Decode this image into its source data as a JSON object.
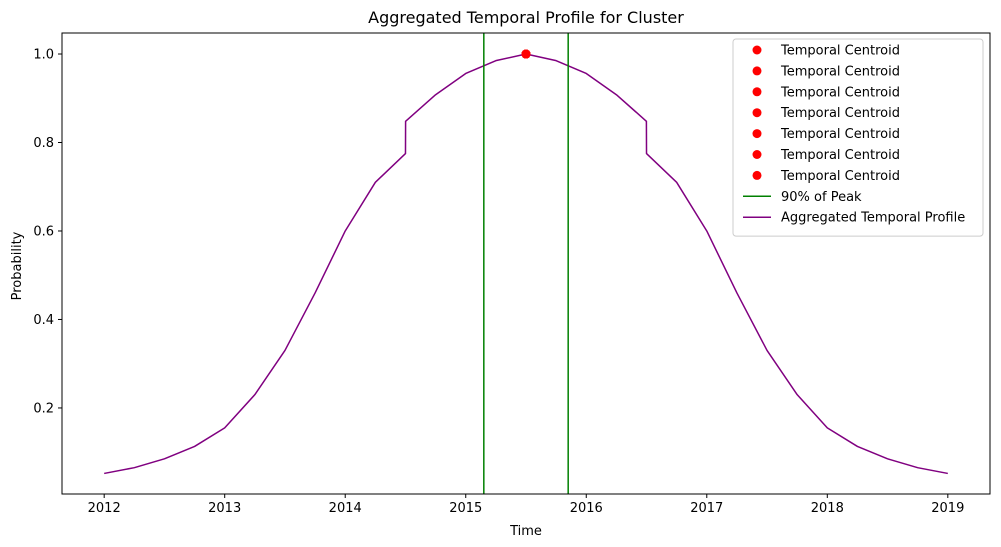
{
  "chart_data": {
    "type": "line",
    "title": "Aggregated Temporal Profile for Cluster",
    "xlabel": "Time",
    "ylabel": "Probability",
    "xlim": [
      2011.65,
      2019.35
    ],
    "ylim": [
      0.0055,
      1.0475
    ],
    "xticks": [
      2012,
      2013,
      2014,
      2015,
      2016,
      2017,
      2018,
      2019
    ],
    "xtick_labels": [
      "2012",
      "2013",
      "2014",
      "2015",
      "2016",
      "2017",
      "2018",
      "2019"
    ],
    "yticks": [
      0.2,
      0.4,
      0.6,
      0.8,
      1.0
    ],
    "ytick_labels": [
      "0.2",
      "0.4",
      "0.6",
      "0.8",
      "1.0"
    ],
    "grid": false,
    "legend_position": "top-right",
    "series": [
      {
        "name": "Aggregated Temporal Profile",
        "kind": "line",
        "color": "#800080",
        "x": [
          2012.0,
          2012.25,
          2012.5,
          2012.75,
          2013.0,
          2013.25,
          2013.5,
          2013.75,
          2014.0,
          2014.25,
          2014.5,
          2014.501,
          2014.75,
          2015.0,
          2015.25,
          2015.5,
          2015.75,
          2016.0,
          2016.25,
          2016.499,
          2016.5,
          2016.75,
          2017.0,
          2017.25,
          2017.5,
          2017.75,
          2018.0,
          2018.25,
          2018.5,
          2018.75,
          2019.0
        ],
        "y": [
          0.052,
          0.065,
          0.085,
          0.113,
          0.155,
          0.23,
          0.33,
          0.46,
          0.6,
          0.71,
          0.775,
          0.848,
          0.908,
          0.956,
          0.985,
          1.0,
          0.985,
          0.956,
          0.908,
          0.848,
          0.775,
          0.71,
          0.6,
          0.46,
          0.33,
          0.23,
          0.155,
          0.113,
          0.085,
          0.065,
          0.052
        ]
      },
      {
        "name": "Temporal Centroid",
        "kind": "scatter",
        "color": "#ff0000",
        "points": [
          {
            "x": 2015.5,
            "y": 1.0
          },
          {
            "x": 2015.5,
            "y": 1.0
          },
          {
            "x": 2015.5,
            "y": 1.0
          },
          {
            "x": 2015.5,
            "y": 1.0
          },
          {
            "x": 2015.5,
            "y": 1.0
          },
          {
            "x": 2015.5,
            "y": 1.0
          },
          {
            "x": 2015.5,
            "y": 1.0
          }
        ]
      },
      {
        "name": "90% of Peak",
        "kind": "vline",
        "color": "#008000",
        "x": [
          2015.15,
          2015.85
        ]
      }
    ],
    "legend": [
      {
        "label": "Temporal Centroid",
        "kind": "marker",
        "color": "#ff0000"
      },
      {
        "label": "Temporal Centroid",
        "kind": "marker",
        "color": "#ff0000"
      },
      {
        "label": "Temporal Centroid",
        "kind": "marker",
        "color": "#ff0000"
      },
      {
        "label": "Temporal Centroid",
        "kind": "marker",
        "color": "#ff0000"
      },
      {
        "label": "Temporal Centroid",
        "kind": "marker",
        "color": "#ff0000"
      },
      {
        "label": "Temporal Centroid",
        "kind": "marker",
        "color": "#ff0000"
      },
      {
        "label": "Temporal Centroid",
        "kind": "marker",
        "color": "#ff0000"
      },
      {
        "label": "90% of Peak",
        "kind": "line",
        "color": "#008000"
      },
      {
        "label": "Aggregated Temporal Profile",
        "kind": "line",
        "color": "#800080"
      }
    ]
  }
}
